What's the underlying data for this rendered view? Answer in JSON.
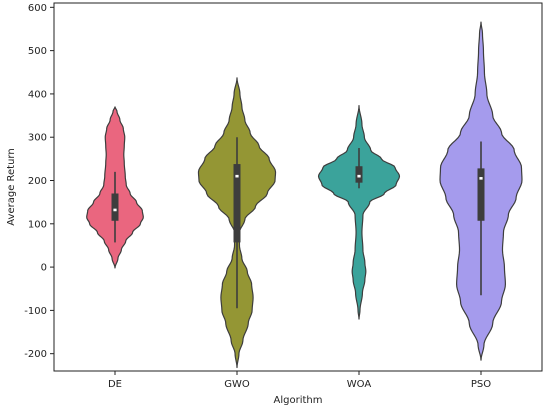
{
  "chart_data": {
    "type": "violin",
    "title": "",
    "xlabel": "Algorithm",
    "ylabel": "Average Return",
    "ylim": [
      -240,
      610
    ],
    "yticks": [
      -200,
      -100,
      0,
      100,
      200,
      300,
      400,
      500,
      600
    ],
    "grid": false,
    "legend": "none",
    "categories": [
      "DE",
      "GWO",
      "WOA",
      "PSO"
    ],
    "series": [
      {
        "category": "DE",
        "color": "#ea667f",
        "range": [
          -2,
          370
        ],
        "quartiles": [
          107,
          132,
          170
        ],
        "whiskers": [
          57,
          220
        ],
        "density": [
          [
            -2,
            0.0
          ],
          [
            20,
            0.06
          ],
          [
            40,
            0.13
          ],
          [
            60,
            0.22
          ],
          [
            80,
            0.36
          ],
          [
            100,
            0.52
          ],
          [
            115,
            0.58
          ],
          [
            130,
            0.56
          ],
          [
            150,
            0.44
          ],
          [
            170,
            0.31
          ],
          [
            190,
            0.23
          ],
          [
            210,
            0.21
          ],
          [
            240,
            0.19
          ],
          [
            260,
            0.18
          ],
          [
            280,
            0.19
          ],
          [
            300,
            0.2
          ],
          [
            320,
            0.17
          ],
          [
            340,
            0.1
          ],
          [
            360,
            0.04
          ],
          [
            370,
            0.0
          ]
        ]
      },
      {
        "category": "GWO",
        "color": "#949634",
        "range": [
          -232,
          437
        ],
        "quartiles": [
          57,
          210,
          238
        ],
        "whiskers": [
          -95,
          300
        ],
        "density": [
          [
            -232,
            0.0
          ],
          [
            -200,
            0.04
          ],
          [
            -170,
            0.12
          ],
          [
            -130,
            0.23
          ],
          [
            -100,
            0.31
          ],
          [
            -70,
            0.33
          ],
          [
            -40,
            0.3
          ],
          [
            -10,
            0.21
          ],
          [
            20,
            0.1
          ],
          [
            50,
            0.05
          ],
          [
            80,
            0.05
          ],
          [
            110,
            0.16
          ],
          [
            140,
            0.38
          ],
          [
            170,
            0.62
          ],
          [
            200,
            0.78
          ],
          [
            220,
            0.79
          ],
          [
            250,
            0.66
          ],
          [
            280,
            0.45
          ],
          [
            310,
            0.27
          ],
          [
            340,
            0.16
          ],
          [
            370,
            0.1
          ],
          [
            400,
            0.06
          ],
          [
            437,
            0.0
          ]
        ]
      },
      {
        "category": "WOA",
        "color": "#3ba39b",
        "range": [
          -120,
          373
        ],
        "quartiles": [
          195,
          210,
          233
        ],
        "whiskers": [
          182,
          275
        ],
        "density": [
          [
            -120,
            0.0
          ],
          [
            -100,
            0.02
          ],
          [
            -60,
            0.07
          ],
          [
            -30,
            0.12
          ],
          [
            -10,
            0.14
          ],
          [
            10,
            0.12
          ],
          [
            40,
            0.08
          ],
          [
            80,
            0.06
          ],
          [
            120,
            0.08
          ],
          [
            150,
            0.22
          ],
          [
            170,
            0.52
          ],
          [
            190,
            0.76
          ],
          [
            210,
            0.83
          ],
          [
            230,
            0.74
          ],
          [
            250,
            0.46
          ],
          [
            270,
            0.24
          ],
          [
            300,
            0.11
          ],
          [
            330,
            0.06
          ],
          [
            373,
            0.0
          ]
        ]
      },
      {
        "category": "PSO",
        "color": "#a59bed",
        "range": [
          -215,
          566
        ],
        "quartiles": [
          107,
          205,
          228
        ],
        "whiskers": [
          -65,
          290
        ],
        "density": [
          [
            -215,
            0.0
          ],
          [
            -180,
            0.06
          ],
          [
            -130,
            0.24
          ],
          [
            -80,
            0.42
          ],
          [
            -40,
            0.5
          ],
          [
            0,
            0.48
          ],
          [
            40,
            0.44
          ],
          [
            80,
            0.46
          ],
          [
            120,
            0.56
          ],
          [
            160,
            0.72
          ],
          [
            200,
            0.84
          ],
          [
            230,
            0.83
          ],
          [
            270,
            0.68
          ],
          [
            310,
            0.42
          ],
          [
            350,
            0.24
          ],
          [
            400,
            0.12
          ],
          [
            450,
            0.07
          ],
          [
            500,
            0.05
          ],
          [
            540,
            0.03
          ],
          [
            566,
            0.0
          ]
        ]
      }
    ]
  }
}
